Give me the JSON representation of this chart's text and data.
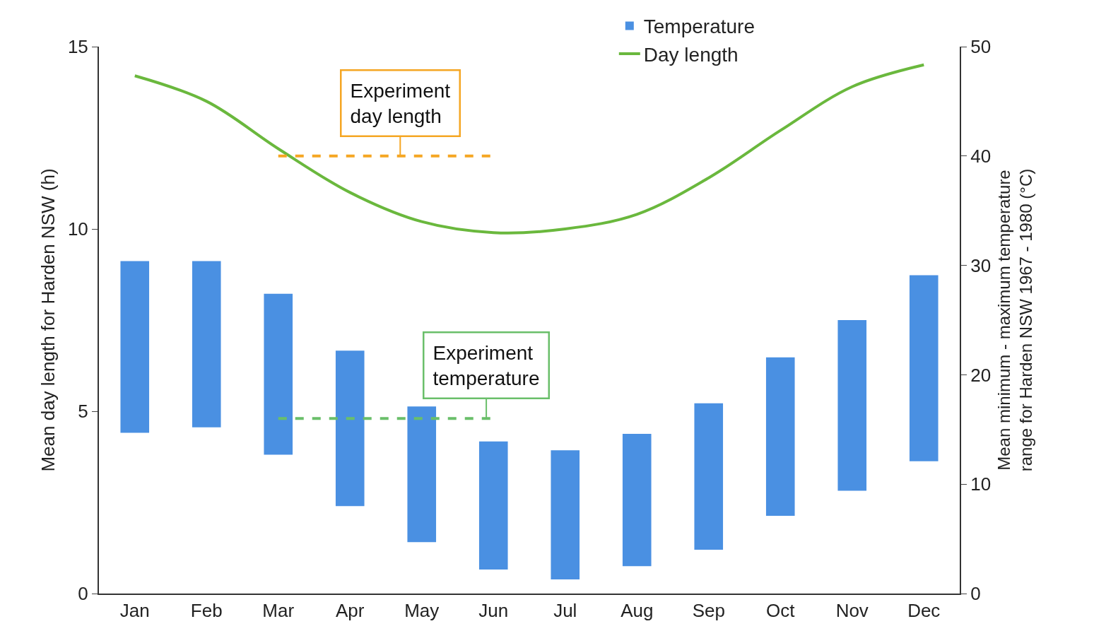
{
  "chart_data": {
    "type": "bar",
    "ylabel": "Mean day length for Harden NSW (h)",
    "y2label": "Mean minimum - maximum temperature range for Harden NSW 1967 - 1980 (°C)",
    "categories": [
      "Jan",
      "Feb",
      "Mar",
      "Apr",
      "May",
      "Jun",
      "Jul",
      "Aug",
      "Sep",
      "Oct",
      "Nov",
      "Dec"
    ],
    "series": [
      {
        "name": "Temperature",
        "axis": "y2",
        "color": "#4a90e2",
        "base": [
          14.7,
          15.2,
          12.7,
          8.0,
          4.7,
          2.2,
          1.3,
          2.5,
          4.0,
          7.1,
          9.4,
          12.1
        ],
        "values": [
          15.7,
          15.2,
          14.7,
          14.2,
          12.4,
          11.7,
          11.8,
          12.1,
          13.4,
          14.5,
          15.6,
          17.0
        ]
      },
      {
        "name": "Day length",
        "type": "line",
        "color": "#6ab83d",
        "values": [
          14.2,
          13.5,
          12.2,
          11.0,
          10.2,
          9.9,
          10.0,
          10.4,
          11.4,
          12.7,
          13.9,
          14.5
        ]
      }
    ],
    "ylim": [
      0,
      15
    ],
    "yticks": [
      0,
      5,
      10,
      15
    ],
    "y2lim": [
      0,
      50
    ],
    "y2ticks": [
      0,
      10,
      20,
      30,
      40,
      50
    ],
    "ref_lines": [
      {
        "axis": "y2",
        "value": 40,
        "label": "Experiment day length",
        "color": "#f5a623",
        "line_style": "dashed"
      },
      {
        "axis": "y2",
        "value": 16,
        "label": "Experiment temperature",
        "color": "#6abf6a",
        "line_style": "dashed"
      }
    ],
    "grid": false,
    "legend": "top right",
    "marker": "none",
    "line_style": "solid"
  }
}
